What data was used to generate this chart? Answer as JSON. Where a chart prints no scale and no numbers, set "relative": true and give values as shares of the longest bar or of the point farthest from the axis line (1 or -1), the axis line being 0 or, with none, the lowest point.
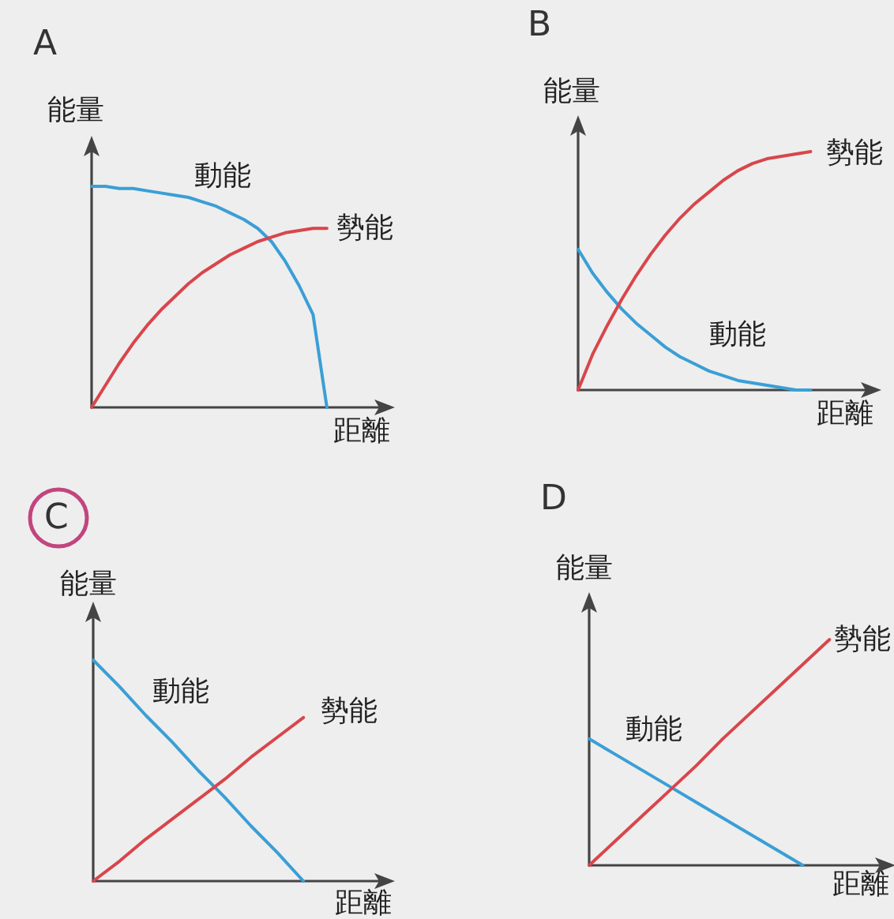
{
  "chart_data": [
    {
      "type": "line",
      "title": "A",
      "xlabel": "距離",
      "ylabel": "能量",
      "relative": true,
      "categories": [
        null,
        null,
        null,
        null,
        null,
        null,
        null,
        null,
        null,
        null,
        null,
        null,
        null,
        null,
        null,
        null,
        null,
        null,
        null,
        null,
        null,
        null
      ],
      "series": [
        {
          "name": "動能",
          "color": "#3a9fd6",
          "values": [
            1,
            1,
            0.99,
            0.99,
            0.98,
            0.97,
            0.96,
            0.95,
            0.93,
            0.91,
            0.88,
            0.85,
            0.81,
            0.75,
            0.66,
            0.55,
            0.42,
            0,
            null,
            null,
            null,
            null
          ]
        },
        {
          "name": "勢能",
          "color": "#d8464b",
          "values": [
            0,
            0.1,
            0.2,
            0.29,
            0.37,
            0.44,
            0.5,
            0.56,
            0.61,
            0.65,
            0.69,
            0.72,
            0.75,
            0.77,
            0.79,
            0.8,
            0.81,
            0.81,
            null,
            null,
            null,
            null
          ]
        }
      ]
    },
    {
      "type": "line",
      "title": "B",
      "xlabel": "距離",
      "ylabel": "能量",
      "relative": true,
      "categories": [
        null,
        null,
        null,
        null,
        null,
        null,
        null,
        null,
        null,
        null,
        null,
        null,
        null,
        null,
        null,
        null,
        null,
        null,
        null,
        null,
        null
      ],
      "series": [
        {
          "name": "動能",
          "color": "#3a9fd6",
          "values": [
            0.59,
            0.49,
            0.41,
            0.34,
            0.28,
            0.23,
            0.18,
            0.14,
            0.11,
            0.08,
            0.06,
            0.04,
            0.03,
            0.02,
            0.01,
            0,
            0,
            null,
            null,
            null,
            null
          ]
        },
        {
          "name": "勢能",
          "color": "#d8464b",
          "values": [
            0,
            0.15,
            0.27,
            0.38,
            0.48,
            0.57,
            0.65,
            0.72,
            0.78,
            0.83,
            0.88,
            0.92,
            0.95,
            0.97,
            0.98,
            0.99,
            1,
            null,
            null,
            null,
            null
          ]
        }
      ]
    },
    {
      "type": "line",
      "title": "C",
      "xlabel": "距離",
      "ylabel": "能量",
      "relative": true,
      "categories": [
        null,
        null,
        null,
        null,
        null,
        null,
        null,
        null,
        null,
        null,
        null,
        null
      ],
      "series": [
        {
          "name": "動能",
          "color": "#3a9fd6",
          "values": [
            1,
            0.88,
            0.75,
            0.63,
            0.5,
            0.38,
            0.25,
            0.13,
            0,
            null,
            null,
            null
          ]
        },
        {
          "name": "勢能",
          "color": "#d8464b",
          "values": [
            0,
            0.09,
            0.19,
            0.28,
            0.37,
            0.46,
            0.56,
            0.65,
            0.74,
            null,
            null,
            null
          ]
        }
      ]
    },
    {
      "type": "line",
      "title": "D",
      "xlabel": "距離",
      "ylabel": "能量",
      "relative": true,
      "categories": [
        null,
        null,
        null,
        null,
        null,
        null,
        null,
        null,
        null,
        null,
        null,
        null
      ],
      "series": [
        {
          "name": "動能",
          "color": "#3a9fd6",
          "values": [
            0.56,
            0.49,
            0.42,
            0.35,
            0.28,
            0.21,
            0.14,
            0.07,
            0,
            null,
            null,
            null
          ]
        },
        {
          "name": "勢能",
          "color": "#d8464b",
          "values": [
            0,
            0.11,
            0.22,
            0.33,
            0.44,
            0.56,
            0.67,
            0.78,
            0.89,
            1,
            null,
            null
          ]
        }
      ]
    }
  ]
}
